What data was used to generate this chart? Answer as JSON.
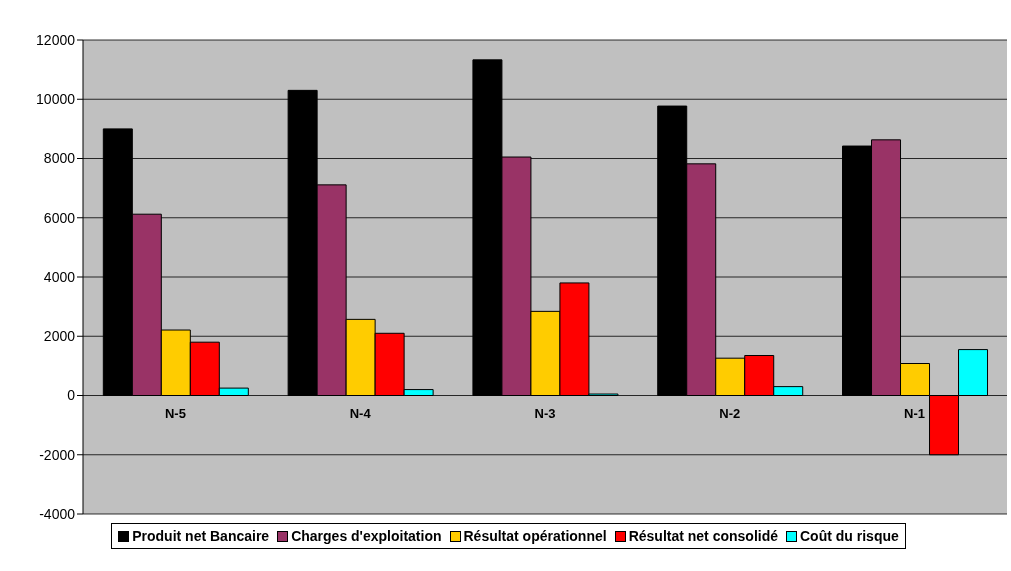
{
  "chart_data": {
    "type": "bar",
    "categories": [
      "N-5",
      "N-4",
      "N-3",
      "N-2",
      "N-1"
    ],
    "series": [
      {
        "name": "Produit net Bancaire",
        "color": "#000000",
        "values": [
          9000,
          10300,
          11330,
          9770,
          8420
        ]
      },
      {
        "name": "Charges d'exploitation",
        "color": "#993366",
        "values": [
          6120,
          7110,
          8050,
          7820,
          8630
        ]
      },
      {
        "name": "Résultat opérationnel",
        "color": "#ffcc00",
        "values": [
          2210,
          2570,
          2840,
          1260,
          1080
        ]
      },
      {
        "name": "Résultat net consolidé",
        "color": "#ff0000",
        "values": [
          1800,
          2100,
          3800,
          1350,
          -2000
        ]
      },
      {
        "name": "Coût du risque",
        "color": "#00ffff",
        "values": [
          250,
          200,
          50,
          300,
          1550
        ]
      }
    ],
    "ylim": [
      -4000,
      12000
    ],
    "yticks": [
      -4000,
      -2000,
      0,
      2000,
      4000,
      6000,
      8000,
      10000,
      12000
    ],
    "grid": "y",
    "legend": "bottom"
  }
}
